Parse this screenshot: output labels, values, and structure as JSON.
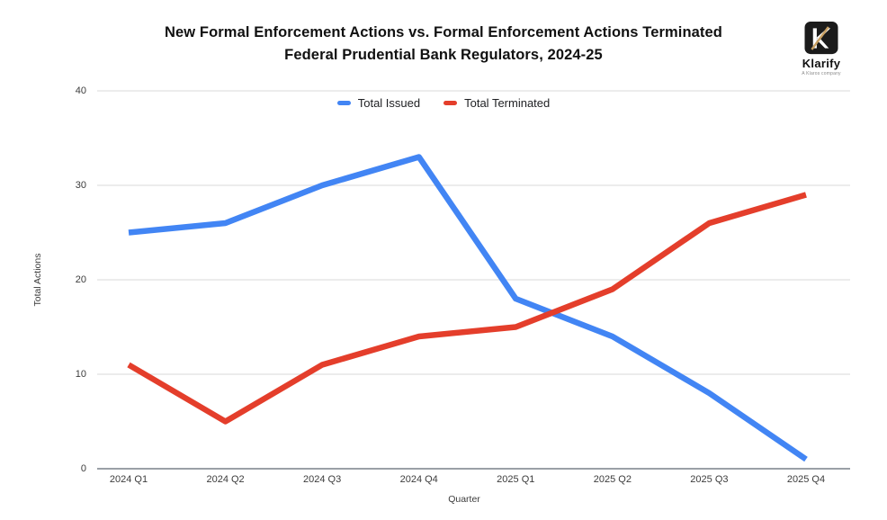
{
  "header": {
    "title_line1": "New Formal Enforcement Actions vs. Formal Enforcement Actions Terminated",
    "title_line2": "Federal Prudential Bank Regulators, 2024-25"
  },
  "logo": {
    "brand": "Klarify",
    "tagline": "A Klaros company",
    "colors": {
      "box": "#1b1b1b",
      "monogram": "#ffffff",
      "slash": "#c8a063"
    }
  },
  "chart_data": {
    "type": "line",
    "title": "New Formal Enforcement Actions vs. Formal Enforcement Actions Terminated — Federal Prudential Bank Regulators, 2024-25",
    "categories": [
      "2024 Q1",
      "2024 Q2",
      "2024 Q3",
      "2024 Q4",
      "2025 Q1",
      "2025 Q2",
      "2025 Q3",
      "2025 Q4"
    ],
    "series": [
      {
        "name": "Total Issued",
        "color": "#4285F4",
        "values": [
          25,
          26,
          30,
          33,
          18,
          14,
          8,
          1
        ]
      },
      {
        "name": "Total Terminated",
        "color": "#E43E2B",
        "values": [
          11,
          5,
          11,
          14,
          15,
          19,
          26,
          29
        ]
      }
    ],
    "xlabel": "Quarter",
    "ylabel": "Total Actions",
    "yticks": [
      0,
      10,
      20,
      30,
      40
    ],
    "ylim": [
      0,
      40
    ],
    "grid": "horizontal",
    "gridline_color": "#e6e6e6",
    "axis_line_color": "#9aa0a6",
    "legend_position": "top"
  }
}
